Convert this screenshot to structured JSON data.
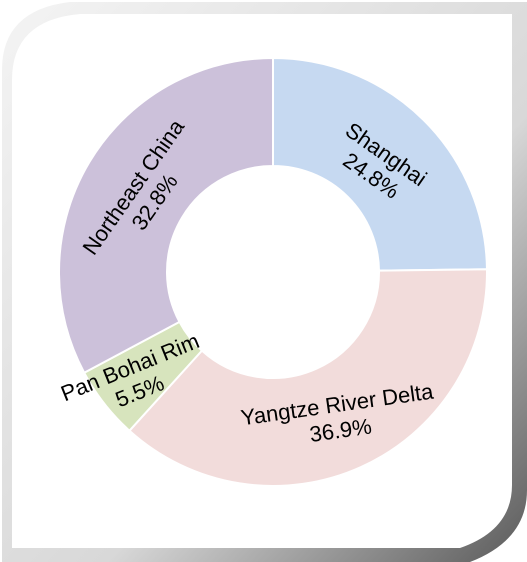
{
  "chart_data": {
    "type": "donut",
    "categories": [
      "Shanghai",
      "Yangtze River Delta",
      "Pan Bohai Rim",
      "Northeast China"
    ],
    "values": [
      24.8,
      36.9,
      5.5,
      32.8
    ],
    "value_labels": [
      "24.8%",
      "36.9%",
      "5.5%",
      "32.8%"
    ],
    "colors": [
      "#c6d9f1",
      "#f2dcdb",
      "#d7e4bd",
      "#ccc1da"
    ]
  }
}
